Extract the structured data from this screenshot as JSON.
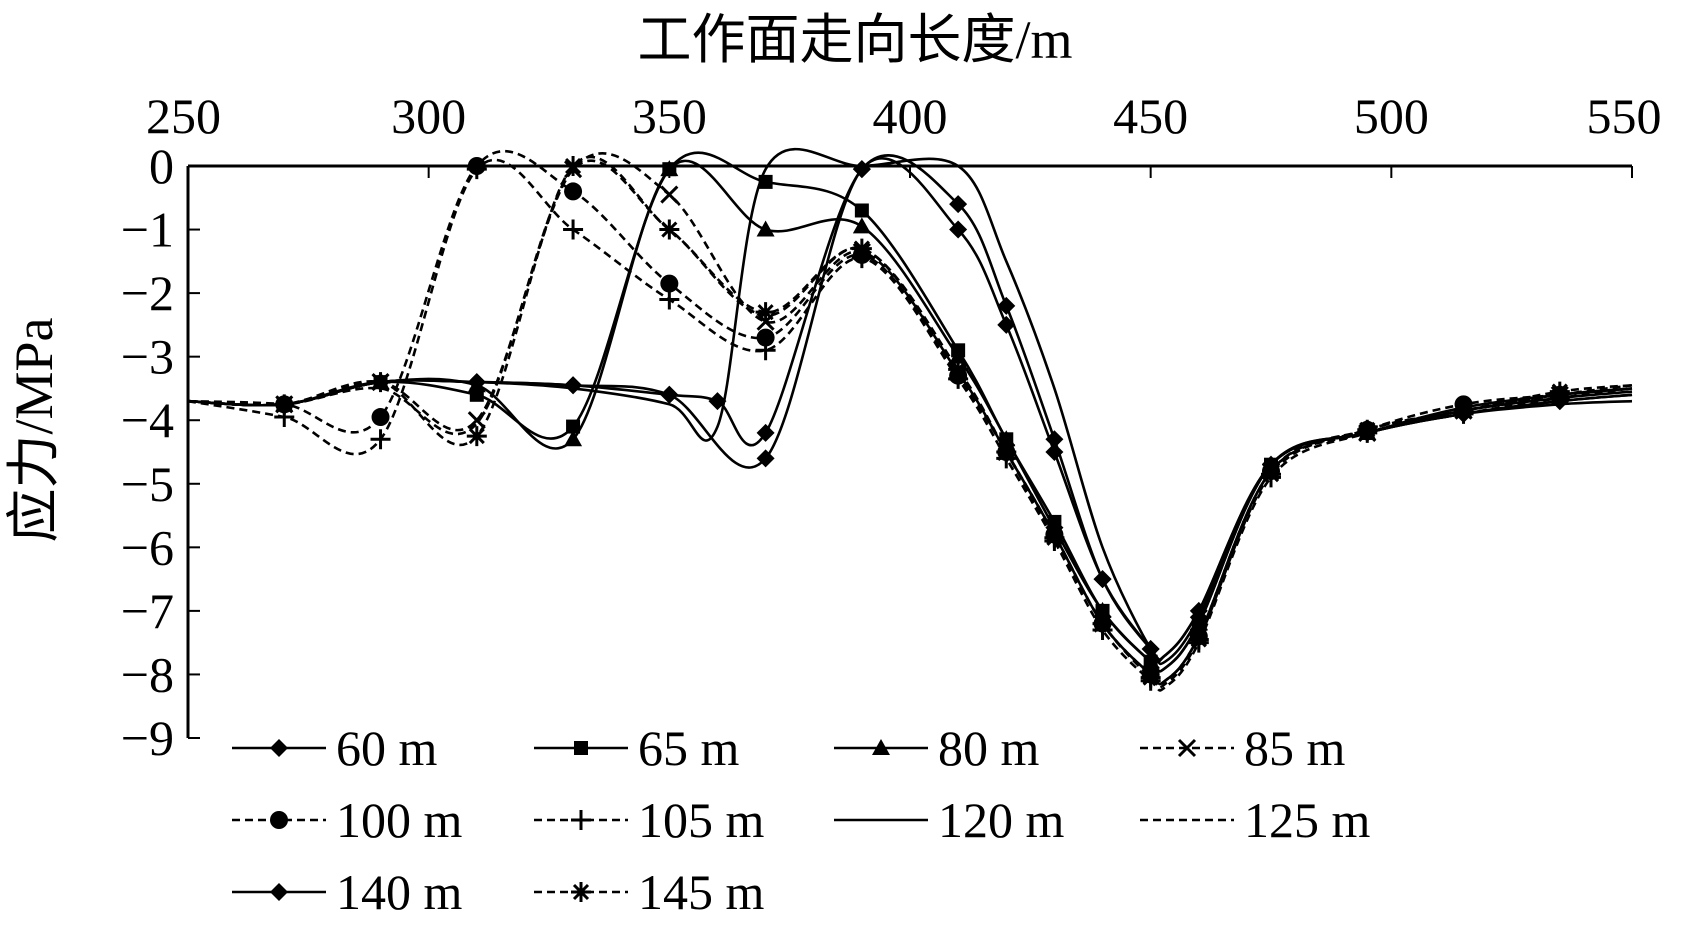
{
  "chart_data": {
    "type": "line",
    "xlabel": "工作面走向长度/m",
    "ylabel": "应力/MPa",
    "xlim": [
      250,
      550
    ],
    "ylim": [
      -9,
      0
    ],
    "x_ticks": [
      "250",
      "300",
      "350",
      "400",
      "450",
      "500",
      "550"
    ],
    "y_ticks": [
      "0",
      "−1",
      "−2",
      "−3",
      "−4",
      "−5",
      "−6",
      "−7",
      "−8",
      "−9"
    ],
    "x_axis_position": "top",
    "grid": false,
    "legend_position": "bottom, inside plot",
    "series": [
      {
        "name": "60 m",
        "marker": "diamond",
        "dash": "solid",
        "x": [
          250,
          270,
          290,
          310,
          330,
          350,
          370,
          390,
          410,
          420,
          430,
          440,
          450,
          453,
          460,
          475,
          495,
          515,
          535,
          550
        ],
        "y": [
          -3.7,
          -3.75,
          -3.4,
          -3.4,
          -3.45,
          -3.6,
          -4.6,
          -0.05,
          -1.0,
          -2.5,
          -4.5,
          -6.5,
          -7.6,
          -7.8,
          -7.1,
          -4.7,
          -4.2,
          -3.9,
          -3.7,
          -3.6
        ]
      },
      {
        "name": "65 m",
        "marker": "square",
        "dash": "solid",
        "x": [
          250,
          270,
          290,
          310,
          330,
          350,
          370,
          390,
          410,
          420,
          430,
          440,
          450,
          453,
          460,
          475,
          495,
          515,
          535,
          550
        ],
        "y": [
          -3.7,
          -3.75,
          -3.4,
          -3.6,
          -4.1,
          -0.05,
          -0.25,
          -0.7,
          -2.9,
          -4.3,
          -5.6,
          -7.0,
          -7.8,
          -7.9,
          -7.2,
          -4.7,
          -4.2,
          -3.8,
          -3.6,
          -3.5
        ]
      },
      {
        "name": "80 m",
        "marker": "triangle",
        "dash": "solid",
        "x": [
          250,
          270,
          290,
          310,
          330,
          350,
          370,
          390,
          410,
          420,
          430,
          440,
          450,
          453,
          460,
          475,
          495,
          515,
          535,
          550
        ],
        "y": [
          -3.7,
          -3.75,
          -3.4,
          -3.45,
          -4.3,
          -0.05,
          -1.0,
          -0.95,
          -3.0,
          -4.3,
          -5.7,
          -7.0,
          -7.8,
          -7.9,
          -7.2,
          -4.7,
          -4.2,
          -3.85,
          -3.65,
          -3.55
        ]
      },
      {
        "name": "85 m",
        "marker": "x",
        "dash": "dashed",
        "x": [
          250,
          270,
          290,
          310,
          330,
          350,
          370,
          390,
          410,
          420,
          430,
          440,
          450,
          453,
          460,
          475,
          495,
          515,
          535,
          550
        ],
        "y": [
          -3.7,
          -3.75,
          -3.4,
          -4.0,
          -0.05,
          -0.45,
          -2.45,
          -1.35,
          -3.25,
          -4.5,
          -5.8,
          -7.2,
          -8.0,
          -8.1,
          -7.4,
          -4.8,
          -4.2,
          -3.85,
          -3.6,
          -3.5
        ]
      },
      {
        "name": "100 m",
        "marker": "circle",
        "dash": "dashed",
        "x": [
          250,
          270,
          290,
          310,
          330,
          350,
          370,
          390,
          410,
          420,
          430,
          440,
          450,
          453,
          460,
          475,
          495,
          515,
          535,
          550
        ],
        "y": [
          -3.7,
          -3.75,
          -3.95,
          -0.0,
          -0.4,
          -1.85,
          -2.7,
          -1.4,
          -3.3,
          -4.5,
          -5.8,
          -7.2,
          -8.0,
          -8.1,
          -7.4,
          -4.8,
          -4.15,
          -3.75,
          -3.6,
          -3.5
        ]
      },
      {
        "name": "105 m",
        "marker": "plus",
        "dash": "dashed",
        "x": [
          250,
          270,
          290,
          310,
          330,
          350,
          370,
          390,
          410,
          420,
          430,
          440,
          450,
          453,
          460,
          475,
          495,
          515,
          535,
          550
        ],
        "y": [
          -3.7,
          -3.95,
          -4.3,
          -0.05,
          -1.0,
          -2.1,
          -2.9,
          -1.45,
          -3.35,
          -4.6,
          -5.9,
          -7.3,
          -8.1,
          -8.2,
          -7.5,
          -4.9,
          -4.2,
          -3.9,
          -3.65,
          -3.5
        ]
      },
      {
        "name": "120 m",
        "marker": "none",
        "dash": "solid",
        "x": [
          250,
          270,
          290,
          310,
          330,
          350,
          360,
          370,
          390,
          410,
          420,
          430,
          440,
          450,
          453,
          460,
          475,
          495,
          515,
          535,
          550
        ],
        "y": [
          -3.7,
          -3.75,
          -3.4,
          -3.4,
          -3.5,
          -3.75,
          -4.1,
          -0.05,
          -0.0,
          -0.0,
          -1.5,
          -3.5,
          -6.0,
          -7.6,
          -7.7,
          -7.0,
          -4.7,
          -4.2,
          -3.9,
          -3.75,
          -3.7
        ]
      },
      {
        "name": "125 m",
        "marker": "none",
        "dash": "dashed",
        "x": [
          250,
          270,
          290,
          310,
          330,
          350,
          370,
          390,
          410,
          420,
          430,
          440,
          450,
          453,
          460,
          475,
          495,
          515,
          535,
          550
        ],
        "y": [
          -3.7,
          -3.75,
          -3.5,
          -4.05,
          -0.05,
          -1.0,
          -2.35,
          -1.3,
          -3.25,
          -4.5,
          -5.8,
          -7.2,
          -8.0,
          -8.1,
          -7.4,
          -4.8,
          -4.15,
          -3.85,
          -3.6,
          -3.45
        ]
      },
      {
        "name": "140 m",
        "marker": "diamond",
        "dash": "solid",
        "x": [
          250,
          270,
          290,
          310,
          330,
          350,
          360,
          370,
          390,
          410,
          420,
          430,
          440,
          450,
          453,
          460,
          475,
          495,
          515,
          535,
          550
        ],
        "y": [
          -3.7,
          -3.75,
          -3.4,
          -3.4,
          -3.45,
          -3.6,
          -3.7,
          -4.2,
          -0.05,
          -0.6,
          -2.2,
          -4.3,
          -6.5,
          -7.6,
          -7.7,
          -7.0,
          -4.7,
          -4.2,
          -3.9,
          -3.7,
          -3.6
        ]
      },
      {
        "name": "145 m",
        "marker": "asterisk",
        "dash": "dashed",
        "x": [
          250,
          270,
          290,
          310,
          330,
          350,
          370,
          390,
          410,
          420,
          430,
          440,
          450,
          453,
          460,
          475,
          495,
          515,
          535,
          550
        ],
        "y": [
          -3.7,
          -3.75,
          -3.4,
          -4.25,
          -0.0,
          -1.0,
          -2.3,
          -1.3,
          -3.2,
          -4.5,
          -5.85,
          -7.2,
          -8.05,
          -8.15,
          -7.45,
          -4.85,
          -4.15,
          -3.85,
          -3.55,
          -3.45
        ]
      }
    ]
  },
  "legend_rows": [
    [
      "60 m",
      "65 m",
      "80 m",
      "85 m"
    ],
    [
      "100 m",
      "105 m",
      "120 m",
      "125 m"
    ],
    [
      "140 m",
      "145 m"
    ]
  ]
}
